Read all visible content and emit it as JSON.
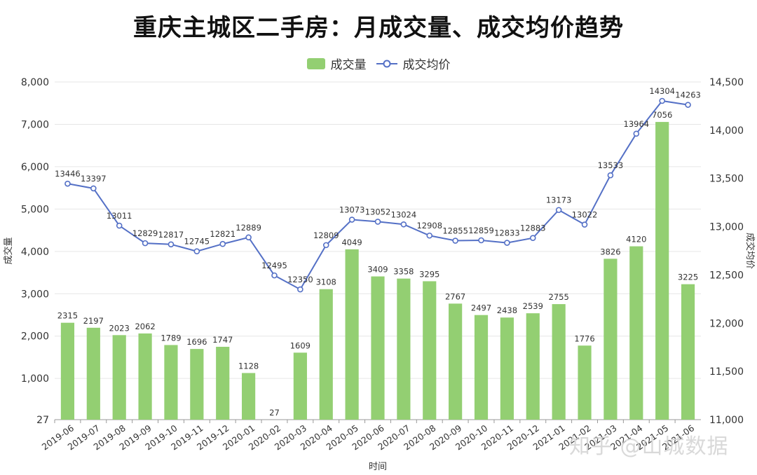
{
  "title": "重庆主城区二手房：月成交量、成交均价趋势",
  "watermark": "知乎 @山城数据",
  "colors": {
    "bar": "#93cf72",
    "line": "#5470c6",
    "grid": "#e6e6e6",
    "axis": "#333333"
  },
  "chart_data": {
    "type": "bar",
    "title": "重庆主城区二手房：月成交量、成交均价趋势",
    "xlabel": "时间",
    "ylabel": "成交量",
    "y2label": "成交均价",
    "legend_position": "top-center",
    "grid": true,
    "categories": [
      "2019-06",
      "2019-07",
      "2019-08",
      "2019-09",
      "2019-10",
      "2019-11",
      "2019-12",
      "2020-01",
      "2020-02",
      "2020-03",
      "2020-04",
      "2020-05",
      "2020-06",
      "2020-07",
      "2020-08",
      "2020-09",
      "2020-10",
      "2020-11",
      "2020-12",
      "2021-01",
      "2021-02",
      "2021-03",
      "2021-04",
      "2021-05",
      "2021-06"
    ],
    "y_ticks": [
      "27",
      "1,000",
      "2,000",
      "3,000",
      "4,000",
      "5,000",
      "6,000",
      "7,000",
      "8,000"
    ],
    "y_tick_values": [
      27,
      1000,
      2000,
      3000,
      4000,
      5000,
      6000,
      7000,
      8000
    ],
    "ylim": [
      27,
      8000
    ],
    "y2_ticks": [
      "11,000",
      "11,500",
      "12,000",
      "12,500",
      "13,000",
      "13,500",
      "14,000",
      "14,500"
    ],
    "y2_tick_values": [
      11000,
      11500,
      12000,
      12500,
      13000,
      13500,
      14000,
      14500
    ],
    "y2lim": [
      11000,
      14500
    ],
    "series": [
      {
        "name": "成交量",
        "type": "bar",
        "axis": "left",
        "values": [
          2315,
          2197,
          2023,
          2062,
          1789,
          1696,
          1747,
          1128,
          27,
          1609,
          3108,
          4049,
          3409,
          3358,
          3295,
          2767,
          2497,
          2438,
          2539,
          2755,
          1776,
          3826,
          4120,
          7056,
          3225
        ]
      },
      {
        "name": "成交均价",
        "type": "line",
        "axis": "right",
        "values": [
          13446,
          13397,
          13011,
          12829,
          12817,
          12745,
          12821,
          12889,
          12495,
          12350,
          12809,
          13073,
          13052,
          13024,
          12908,
          12855,
          12859,
          12833,
          12883,
          13173,
          13022,
          13533,
          13964,
          14304,
          14263
        ]
      }
    ]
  }
}
